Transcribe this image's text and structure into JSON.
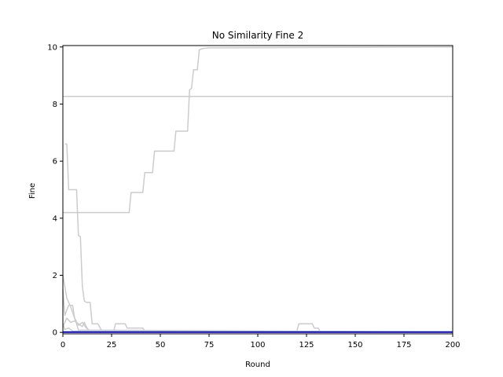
{
  "chart_data": {
    "type": "line",
    "title": "No Similarity Fine 2",
    "xlabel": "Round",
    "ylabel": "Fine",
    "xlim": [
      0,
      200
    ],
    "ylim": [
      -0.05,
      10.05
    ],
    "xticks": [
      0,
      25,
      50,
      75,
      100,
      125,
      150,
      175,
      200
    ],
    "yticks": [
      0,
      2,
      4,
      6,
      8,
      10
    ],
    "grid": false,
    "legend": "none",
    "colors": {
      "gray": "#cccccc",
      "blue": "#0000cc",
      "axis": "#000000"
    },
    "series": [
      {
        "color": "#cccccc",
        "x": [
          0,
          200
        ],
        "y": [
          8.27,
          8.27
        ]
      },
      {
        "color": "#cccccc",
        "x": [
          0,
          34,
          35,
          41,
          42,
          46,
          47,
          57,
          58,
          64,
          65,
          66,
          67,
          69,
          70,
          72,
          75,
          80,
          120,
          200
        ],
        "y": [
          4.2,
          4.2,
          4.9,
          4.9,
          5.6,
          5.6,
          6.35,
          6.35,
          7.05,
          7.05,
          8.5,
          8.55,
          9.2,
          9.2,
          9.9,
          9.95,
          9.97,
          9.97,
          9.98,
          10.0
        ]
      },
      {
        "color": "#cccccc",
        "x": [
          1,
          2,
          3,
          6,
          7,
          8,
          9,
          10,
          11,
          12,
          14,
          15,
          18,
          20,
          21,
          200
        ],
        "y": [
          6.6,
          6.6,
          5.0,
          5.0,
          5.0,
          3.4,
          3.35,
          1.6,
          1.1,
          1.05,
          1.05,
          0.3,
          0.3,
          0.05,
          0.02,
          0.02
        ]
      },
      {
        "color": "#cccccc",
        "x": [
          0,
          2,
          4,
          6,
          8,
          10,
          12,
          14,
          16,
          18,
          19,
          20,
          26,
          27,
          28,
          32,
          33,
          34,
          41,
          42,
          50,
          200
        ],
        "y": [
          2.0,
          1.2,
          0.9,
          0.5,
          0.25,
          0.35,
          0.15,
          0.05,
          0.03,
          0.03,
          0.0,
          0.02,
          0.02,
          0.3,
          0.3,
          0.3,
          0.15,
          0.15,
          0.15,
          0.05,
          0.05,
          0.02
        ]
      },
      {
        "color": "#cccccc",
        "x": [
          0,
          1,
          3,
          4,
          5,
          6,
          7,
          8,
          200
        ],
        "y": [
          1.5,
          0.6,
          0.95,
          0.95,
          0.95,
          0.5,
          0.3,
          0.08,
          0.02
        ]
      },
      {
        "color": "#cccccc",
        "x": [
          0,
          2,
          4,
          6,
          8,
          10,
          11,
          12,
          13,
          14,
          200
        ],
        "y": [
          0.2,
          0.5,
          0.35,
          0.4,
          0.3,
          0.2,
          0.35,
          0.2,
          0.1,
          0.02,
          0.02
        ]
      },
      {
        "color": "#cccccc",
        "x": [
          0,
          1,
          3,
          5,
          200
        ],
        "y": [
          0.3,
          0.1,
          0.15,
          0.05,
          0.02
        ]
      },
      {
        "color": "#cccccc",
        "x": [
          0,
          74,
          75,
          80,
          90,
          92,
          120,
          121,
          122,
          127,
          128,
          129,
          130,
          131,
          132,
          200
        ],
        "y": [
          0.02,
          0.02,
          0.03,
          0.05,
          0.05,
          0.02,
          0.02,
          0.3,
          0.3,
          0.3,
          0.3,
          0.15,
          0.15,
          0.15,
          0.02,
          0.02
        ]
      },
      {
        "color": "#0000cc",
        "x": [
          0,
          200
        ],
        "y": [
          0.01,
          0.01
        ]
      }
    ]
  }
}
